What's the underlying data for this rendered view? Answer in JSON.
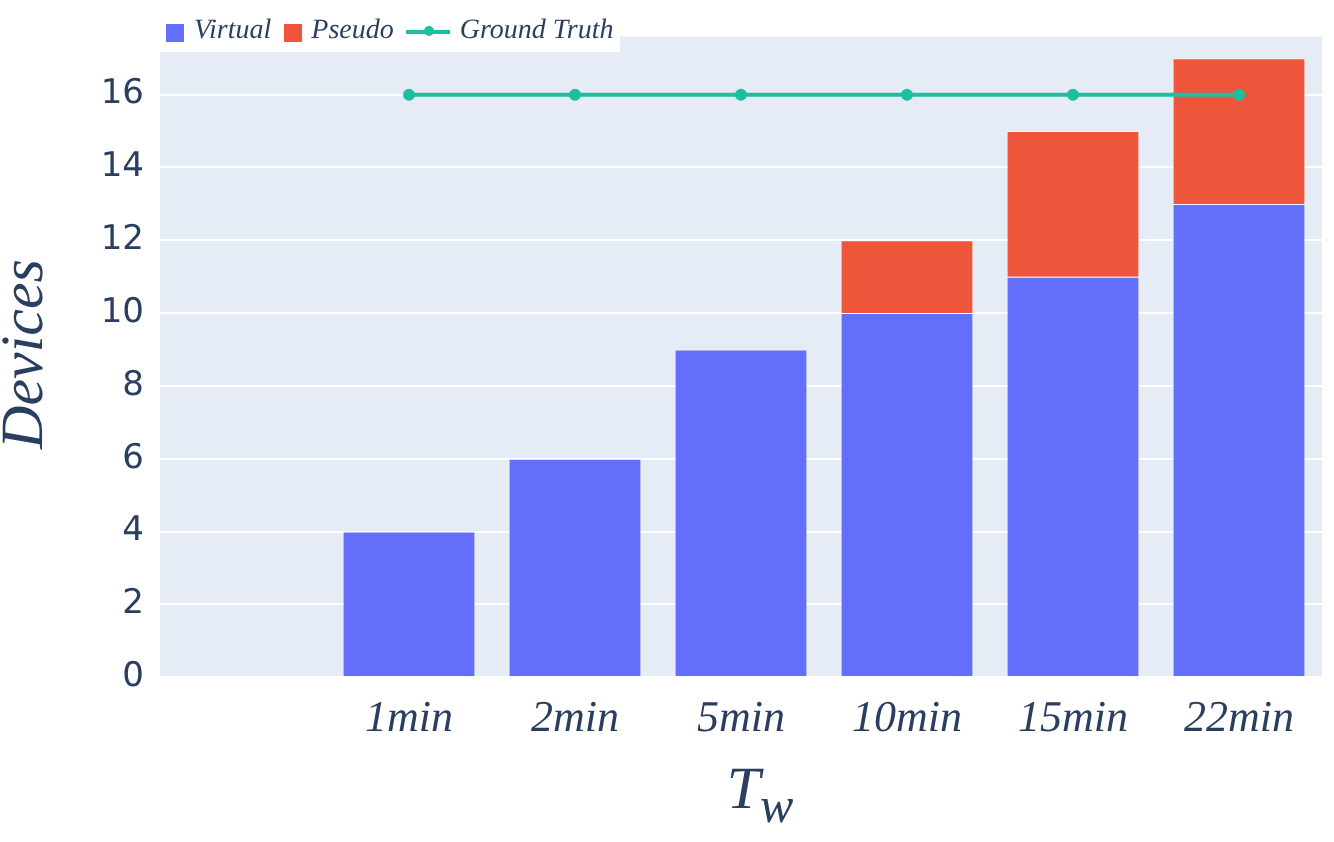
{
  "chart_data": {
    "type": "bar",
    "stacked": true,
    "xlabel": "T$_{w}$",
    "ylabel": "Devices",
    "categories": [
      null,
      "1min",
      "2min",
      "5min",
      "10min",
      "15min",
      "22min"
    ],
    "series": [
      {
        "name": "Virtual",
        "color": "#636efa",
        "values": [
          null,
          4,
          6,
          9,
          10,
          11,
          13
        ]
      },
      {
        "name": "Pseudo",
        "color": "#ef553b",
        "values": [
          null,
          0,
          0,
          0,
          2,
          4,
          4
        ]
      },
      {
        "name": "Ground Truth",
        "type": "line",
        "color": "#1cbfa0",
        "marker": "circle",
        "values": [
          null,
          16,
          16,
          16,
          16,
          16,
          16
        ]
      }
    ],
    "ylim": [
      0,
      17.6
    ],
    "yticks": [
      0,
      2,
      4,
      6,
      8,
      10,
      12,
      14,
      16
    ],
    "grid": "y",
    "legend": "top left"
  }
}
